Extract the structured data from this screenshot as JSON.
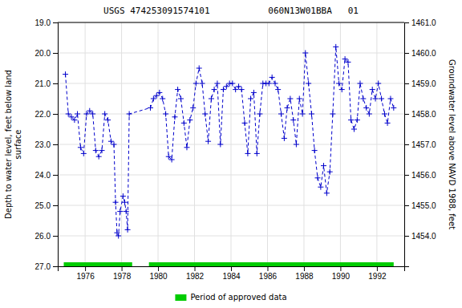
{
  "chart_data": {
    "type": "line",
    "title": "USGS 474253091574101           060N13W01BBA   01",
    "y_label": "Depth to water level, feet below land\nsurface",
    "y2_label": "Groundwater level above NAVD 1988, feet",
    "xlim": [
      1974.5,
      1993.5
    ],
    "xticks": [
      1976,
      1978,
      1980,
      1982,
      1984,
      1986,
      1988,
      1990,
      1992
    ],
    "ylim": [
      27.0,
      19.0
    ],
    "yticks": [
      {
        "value": 19.0,
        "label": "19.0"
      },
      {
        "value": 20.0,
        "label": "20.0"
      },
      {
        "value": 21.0,
        "label": "21.0"
      },
      {
        "value": 22.0,
        "label": "22.0"
      },
      {
        "value": 23.0,
        "label": "23.0"
      },
      {
        "value": 24.0,
        "label": "24.0"
      },
      {
        "value": 25.0,
        "label": "25.0"
      },
      {
        "value": 26.0,
        "label": "26.0"
      },
      {
        "value": 27.0,
        "label": "27.0"
      }
    ],
    "y2lim": [
      1453.0,
      1461.0
    ],
    "y2ticks": [
      {
        "value": 1461.0,
        "label": "1461.0"
      },
      {
        "value": 1460.0,
        "label": "1460.0"
      },
      {
        "value": 1459.0,
        "label": "1459.0"
      },
      {
        "value": 1458.0,
        "label": "1458.0"
      },
      {
        "value": 1457.0,
        "label": "1457.0"
      },
      {
        "value": 1456.0,
        "label": "1456.0"
      },
      {
        "value": 1455.0,
        "label": "1455.0"
      },
      {
        "value": 1454.0,
        "label": "1454.0"
      }
    ],
    "grid": true,
    "legend": "bottom",
    "x": [
      1974.92,
      1975.08,
      1975.25,
      1975.42,
      1975.58,
      1975.75,
      1975.92,
      1976.08,
      1976.25,
      1976.42,
      1976.58,
      1976.75,
      1976.92,
      1977.08,
      1977.25,
      1977.42,
      1977.58,
      1977.67,
      1977.75,
      1977.83,
      1977.92,
      1978.08,
      1978.17,
      1978.25,
      1978.33,
      1978.42,
      1979.58,
      1979.75,
      1979.92,
      1980.08,
      1980.25,
      1980.42,
      1980.58,
      1980.75,
      1980.92,
      1981.08,
      1981.25,
      1981.42,
      1981.58,
      1981.75,
      1981.92,
      1982.08,
      1982.25,
      1982.42,
      1982.58,
      1982.75,
      1982.92,
      1983.08,
      1983.25,
      1983.42,
      1983.58,
      1983.75,
      1983.92,
      1984.08,
      1984.25,
      1984.42,
      1984.58,
      1984.75,
      1984.92,
      1985.08,
      1985.25,
      1985.42,
      1985.58,
      1985.75,
      1985.92,
      1986.08,
      1986.25,
      1986.42,
      1986.58,
      1986.75,
      1986.92,
      1987.08,
      1987.25,
      1987.42,
      1987.58,
      1987.75,
      1987.92,
      1988.08,
      1988.25,
      1988.42,
      1988.58,
      1988.75,
      1988.92,
      1989.08,
      1989.25,
      1989.42,
      1989.58,
      1989.75,
      1989.92,
      1990.08,
      1990.25,
      1990.42,
      1990.58,
      1990.75,
      1990.92,
      1991.08,
      1991.25,
      1991.42,
      1991.58,
      1991.75,
      1991.92,
      1992.08,
      1992.25,
      1992.42,
      1992.58,
      1992.75,
      1992.92
    ],
    "series": [
      {
        "type": "line",
        "color": "#0000cc",
        "marker": "plus",
        "line_style": "dashed",
        "values": [
          20.7,
          22.0,
          22.1,
          22.2,
          22.0,
          23.1,
          23.3,
          22.0,
          21.9,
          22.0,
          23.2,
          23.4,
          23.2,
          22.0,
          22.2,
          22.9,
          23.0,
          24.9,
          25.9,
          26.0,
          25.2,
          24.7,
          24.9,
          25.2,
          25.8,
          22.0,
          21.8,
          21.5,
          21.4,
          21.3,
          21.5,
          22.0,
          23.4,
          23.5,
          22.1,
          21.2,
          21.5,
          22.3,
          23.1,
          22.2,
          21.8,
          21.0,
          20.5,
          21.0,
          22.0,
          22.9,
          21.5,
          21.2,
          21.0,
          23.0,
          21.2,
          21.1,
          21.0,
          21.0,
          21.2,
          21.1,
          21.2,
          22.3,
          23.3,
          21.5,
          21.3,
          23.3,
          22.0,
          21.0,
          21.0,
          21.0,
          20.8,
          21.0,
          21.2,
          22.0,
          22.8,
          21.8,
          21.5,
          22.2,
          23.0,
          21.5,
          22.0,
          20.0,
          21.0,
          22.0,
          23.2,
          24.1,
          24.4,
          23.7,
          24.6,
          23.9,
          22.0,
          19.8,
          21.0,
          21.2,
          20.2,
          20.3,
          22.2,
          22.5,
          22.2,
          21.0,
          21.5,
          21.8,
          22.0,
          21.2,
          21.5,
          21.0,
          21.5,
          22.0,
          22.3,
          21.5,
          21.8
        ]
      },
      {
        "type": "span",
        "name": "Period of approved data",
        "color": "#00cc00",
        "periods": [
          [
            1974.83,
            1978.58
          ],
          [
            1979.5,
            1992.92
          ]
        ]
      }
    ]
  }
}
